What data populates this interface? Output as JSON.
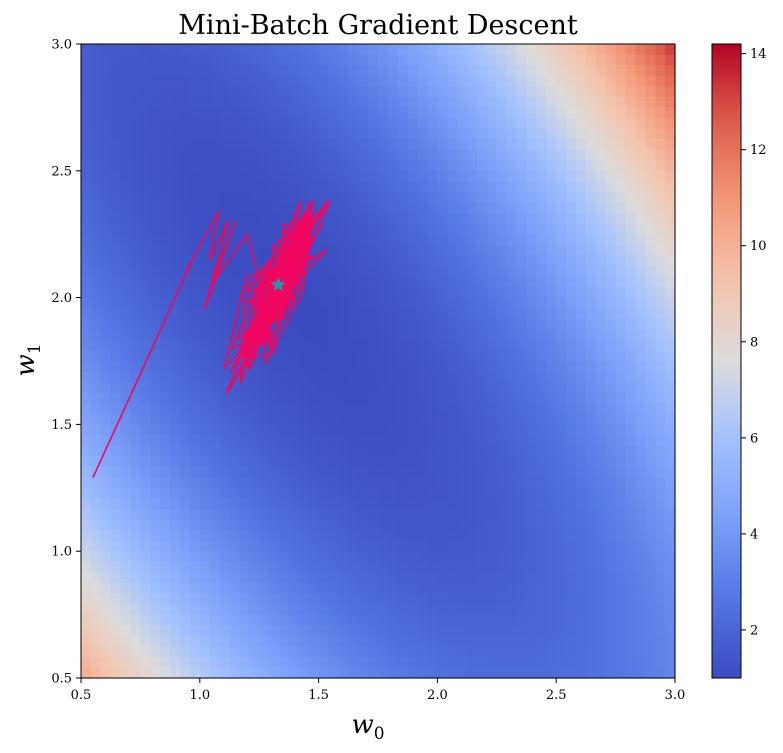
{
  "chart_data": {
    "type": "heatmap",
    "title": "Mini-Batch Gradient Descent",
    "xlabel": {
      "var": "w",
      "sub": "0"
    },
    "ylabel": {
      "var": "w",
      "sub": "1"
    },
    "xlim": [
      0.5,
      3.0
    ],
    "ylim": [
      0.5,
      3.0
    ],
    "x_ticks": [
      "0.5",
      "1.0",
      "1.5",
      "2.0",
      "2.5",
      "3.0"
    ],
    "y_ticks": [
      "0.5",
      "1.0",
      "1.5",
      "2.0",
      "2.5",
      "3.0"
    ],
    "colormap": "coolwarm",
    "colorbar": {
      "range": [
        1.0,
        14.2
      ],
      "ticks": [
        "2",
        "4",
        "6",
        "8",
        "10",
        "12",
        "14"
      ]
    },
    "surface": {
      "min_at": [
        1.4,
        2.0
      ],
      "a": 2.4,
      "b": 1.5,
      "c": 3.0,
      "offset": 1.0
    },
    "path": {
      "color": "#f0055f",
      "start": [
        0.55,
        1.29
      ],
      "first_steps": [
        [
          0.55,
          1.29
        ],
        [
          0.97,
          2.15
        ],
        [
          0.94,
          2.1
        ],
        [
          1.08,
          2.34
        ],
        [
          1.04,
          2.15
        ],
        [
          1.12,
          2.3
        ],
        [
          1.02,
          1.95
        ],
        [
          1.15,
          2.3
        ],
        [
          1.05,
          2.05
        ],
        [
          1.2,
          2.25
        ]
      ],
      "cluster_center": [
        1.33,
        2.04
      ],
      "cluster_spread": [
        0.11,
        0.2
      ],
      "cluster_extent": {
        "w0": [
          1.05,
          1.55
        ],
        "w1": [
          1.62,
          2.38
        ]
      },
      "cluster_orientation": "diagonal"
    },
    "minimum_marker": {
      "shape": "star",
      "color": "#1f9bb0",
      "point": [
        1.33,
        2.05
      ]
    }
  }
}
